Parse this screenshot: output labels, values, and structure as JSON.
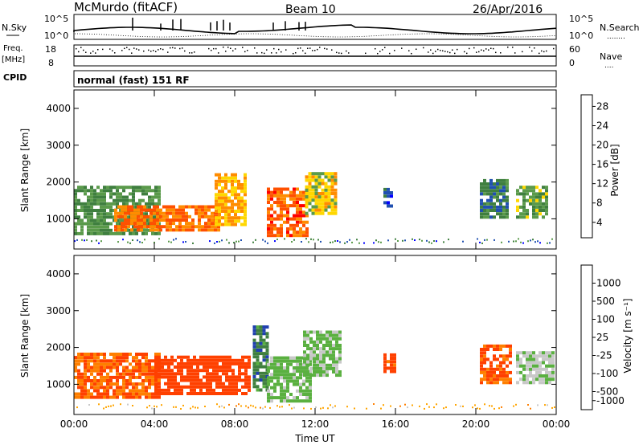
{
  "header": {
    "station": "McMurdo (fitACF)",
    "beam": "Beam 10",
    "date": "26/Apr/2016"
  },
  "noise_panel": {
    "left_label": "N.Sky",
    "right_label": "N.Search",
    "right_marker": "........",
    "left_ticks": [
      "10^5",
      "10^0"
    ],
    "right_ticks": [
      "10^5",
      "10^0"
    ]
  },
  "freq_panel": {
    "left_label_1": "Freq.",
    "left_label_2": "[MHz]",
    "right_label": "Nave",
    "right_marker": "....",
    "left_ticks": [
      "18",
      "8"
    ],
    "right_ticks": [
      "60",
      "0"
    ],
    "range_mhz": [
      8,
      18
    ],
    "nave_range": [
      0,
      60
    ]
  },
  "cpid_panel": {
    "label": "CPID",
    "program": "normal (fast) 151 RF"
  },
  "chart_data": [
    {
      "type": "heatmap",
      "name": "power",
      "ylabel": "Slant Range [km]",
      "xlabel": "Time UT",
      "ylim": [
        180,
        4500
      ],
      "yticks": [
        "1000",
        "2000",
        "3000",
        "4000"
      ],
      "xticks": [
        "00:00",
        "04:00",
        "08:00",
        "12:00",
        "16:00",
        "20:00",
        "00:00"
      ],
      "colorbar": {
        "label": "Power [dB]",
        "ticks": [
          "28",
          "24",
          "20",
          "16",
          "12",
          "8",
          "4"
        ],
        "colors": [
          "#0000ff",
          "#2050b0",
          "#3f7f3f",
          "#5a9a4a",
          "#ffd700",
          "#ff8c00",
          "#ff5000",
          "#ff0000"
        ]
      },
      "regions": [
        {
          "t": [
            0.0,
            4.2
          ],
          "r": [
            550,
            1900
          ],
          "v": 14
        },
        {
          "t": [
            2.0,
            7.2
          ],
          "r": [
            650,
            1300
          ],
          "v": 26
        },
        {
          "t": [
            7.0,
            8.6
          ],
          "r": [
            800,
            2200
          ],
          "v": 22
        },
        {
          "t": [
            9.6,
            11.6
          ],
          "r": [
            500,
            1800
          ],
          "v": 27
        },
        {
          "t": [
            11.5,
            13.1
          ],
          "r": [
            1100,
            2200
          ],
          "v": 20
        },
        {
          "t": [
            15.4,
            15.8
          ],
          "r": [
            1300,
            1800
          ],
          "v": 8
        },
        {
          "t": [
            20.2,
            21.6
          ],
          "r": [
            1000,
            2000
          ],
          "v": 12
        },
        {
          "t": [
            22.0,
            23.6
          ],
          "r": [
            1000,
            1900
          ],
          "v": 16
        }
      ]
    },
    {
      "type": "heatmap",
      "name": "velocity",
      "ylabel": "Slant Range [km]",
      "xlabel": "Time UT",
      "ylim": [
        180,
        4500
      ],
      "yticks": [
        "1000",
        "2000",
        "3000",
        "4000"
      ],
      "xticks": [
        "00:00",
        "04:00",
        "08:00",
        "12:00",
        "16:00",
        "20:00",
        "00:00"
      ],
      "colorbar": {
        "label": "Velocity [m s⁻¹]",
        "ticks": [
          "1000",
          "500",
          "100",
          "25",
          "-25",
          "-100",
          "-500",
          "-1000"
        ],
        "colors": [
          "#2040b0",
          "#3f7f3f",
          "#5ab040",
          "#c8c8c8",
          "#ffa500",
          "#ff7f00",
          "#ff4000",
          "#ff0000"
        ]
      },
      "regions": [
        {
          "t": [
            0.0,
            4.2
          ],
          "r": [
            600,
            1800
          ],
          "v": -100
        },
        {
          "t": [
            4.0,
            8.8
          ],
          "r": [
            700,
            1700
          ],
          "v": -200
        },
        {
          "t": [
            8.9,
            9.6
          ],
          "r": [
            800,
            2600
          ],
          "v": 800
        },
        {
          "t": [
            9.6,
            11.8
          ],
          "r": [
            500,
            1700
          ],
          "v": 150
        },
        {
          "t": [
            11.4,
            13.2
          ],
          "r": [
            1200,
            2400
          ],
          "v": 120
        },
        {
          "t": [
            15.4,
            15.9
          ],
          "r": [
            1300,
            1800
          ],
          "v": -150
        },
        {
          "t": [
            20.2,
            21.8
          ],
          "r": [
            1000,
            2000
          ],
          "v": -120
        },
        {
          "t": [
            22.0,
            23.8
          ],
          "r": [
            1000,
            1900
          ],
          "v": 80
        }
      ]
    }
  ]
}
